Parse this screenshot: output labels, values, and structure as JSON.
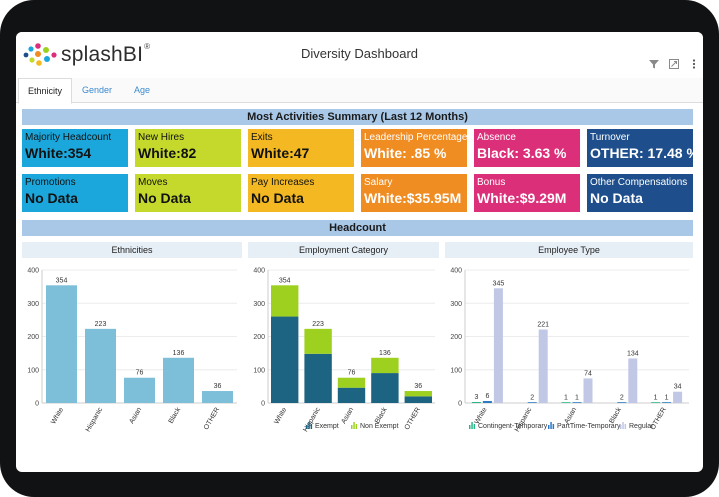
{
  "app": {
    "logo_text": "splashBI",
    "logo_reg": "®",
    "title": "Diversity Dashboard"
  },
  "tabs": [
    {
      "label": "Ethnicity",
      "active": true
    },
    {
      "label": "Gender"
    },
    {
      "label": "Age"
    }
  ],
  "summary": {
    "title": "Most Activities Summary (Last 12 Months)",
    "tiles": [
      {
        "title": "Majority Headcount",
        "value": "White:354",
        "color": "#1ba7db"
      },
      {
        "title": "New Hires",
        "value": "White:82",
        "color": "#c5d92d"
      },
      {
        "title": "Exits",
        "value": "White:47",
        "color": "#f4b922"
      },
      {
        "title": "Leadership Percentage",
        "value": "White: .85 %",
        "color": "#ef8c22"
      },
      {
        "title": "Absence",
        "value": "Black: 3.63 %",
        "color": "#dc2f7a"
      },
      {
        "title": "Turnover",
        "value": "OTHER: 17.48 %",
        "color": "#1e4f8c"
      },
      {
        "title": "Promotions",
        "value": "No Data",
        "color": "#1ba7db"
      },
      {
        "title": "Moves",
        "value": "No Data",
        "color": "#c5d92d"
      },
      {
        "title": "Pay Increases",
        "value": "No Data",
        "color": "#f4b922"
      },
      {
        "title": "Salary",
        "value": "White:$35.95M",
        "color": "#ef8c22"
      },
      {
        "title": "Bonus",
        "value": "White:$9.29M",
        "color": "#dc2f7a"
      },
      {
        "title": "Other Compensations",
        "value": "No Data",
        "color": "#1e4f8c"
      }
    ]
  },
  "headcount": {
    "title": "Headcount"
  },
  "chart_data": [
    {
      "type": "bar",
      "title": "Ethnicities",
      "categories": [
        "White",
        "Hispanic",
        "Asian",
        "Black",
        "OTHER"
      ],
      "values": [
        354,
        223,
        76,
        136,
        36
      ],
      "ylim": [
        0,
        400
      ],
      "yticks": [
        0,
        100,
        200,
        300,
        400
      ],
      "color": "#7dbfd9"
    },
    {
      "type": "bar",
      "stacked": true,
      "title": "Employment Category",
      "categories": [
        "White",
        "Hispanic",
        "Asian",
        "Black",
        "OTHER"
      ],
      "totals": [
        354,
        223,
        76,
        136,
        36
      ],
      "series": [
        {
          "name": "Exempt",
          "values": [
            260,
            148,
            46,
            90,
            20
          ],
          "color": "#1d6382"
        },
        {
          "name": "Non Exempt",
          "values": [
            94,
            75,
            30,
            46,
            16
          ],
          "color": "#9ed11f"
        }
      ],
      "ylim": [
        0,
        400
      ],
      "yticks": [
        0,
        100,
        200,
        300,
        400
      ]
    },
    {
      "type": "bar",
      "title": "Employee Type",
      "categories": [
        "White",
        "Hispanic",
        "Asian",
        "Black",
        "OTHER"
      ],
      "series": [
        {
          "name": "Contingent-Temporary",
          "values": [
            3,
            0,
            1,
            0,
            1
          ],
          "labels": [
            "3",
            "",
            "1",
            "",
            "1"
          ],
          "color": "#2bb58a"
        },
        {
          "name": "PartTime-Temporary",
          "values": [
            6,
            2,
            1,
            2,
            1
          ],
          "labels": [
            "6",
            "2",
            "1",
            "2",
            "1"
          ],
          "color": "#2a79c4"
        },
        {
          "name": "Regular",
          "values": [
            345,
            221,
            74,
            134,
            34
          ],
          "labels": [
            "345",
            "221",
            "74",
            "134",
            "34"
          ],
          "color": "#c1c8e6"
        }
      ],
      "ylim": [
        0,
        400
      ],
      "yticks": [
        0,
        100,
        200,
        300,
        400
      ]
    }
  ]
}
